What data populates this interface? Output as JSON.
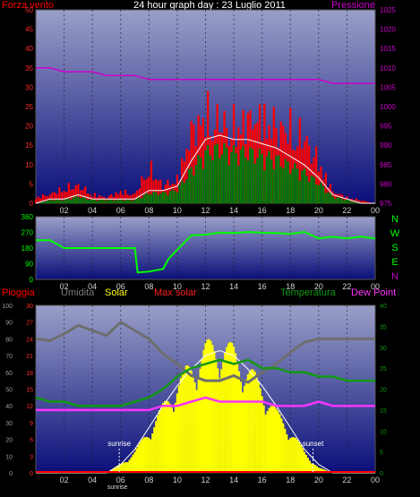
{
  "title": "24 hour graph day : 23 Luglio 2011",
  "colors": {
    "background": "#000000",
    "panel_top": "#9a9fc8",
    "panel_bottom": "#0a0f7a",
    "wind": "#ff0000",
    "gust": "#ff0000",
    "avg_wind": "#008000",
    "avg_line": "#ffffff",
    "pressure": "#cc00cc",
    "direction": "#00ff00",
    "rain": "#ff0000",
    "humidity": "#6e6e6e",
    "solar": "#ffff00",
    "max_solar": "#ffffff",
    "temperature": "#119911",
    "dew_point": "#ff33ff",
    "marker": "#ffffff"
  },
  "x_ticks": [
    "02",
    "04",
    "06",
    "08",
    "10",
    "12",
    "14",
    "16",
    "18",
    "20",
    "22",
    "00"
  ],
  "chart_data": [
    {
      "type": "line",
      "panel": "wind",
      "left_label": "Forza vento",
      "right_label": "Pressione",
      "left_ticks": [
        "0",
        "5",
        "10",
        "15",
        "20",
        "25",
        "30",
        "35",
        "40",
        "45",
        "50"
      ],
      "right_ticks": [
        "975",
        "980",
        "985",
        "990",
        "995",
        "1000",
        "1005",
        "1010",
        "1015",
        "1020",
        "1025"
      ],
      "ylim_left": [
        0,
        50
      ],
      "ylim_right": [
        975,
        1025
      ],
      "x": [
        0,
        1,
        2,
        3,
        4,
        5,
        6,
        7,
        8,
        9,
        10,
        11,
        12,
        13,
        14,
        15,
        16,
        17,
        18,
        19,
        20,
        21,
        22,
        23,
        24
      ],
      "series": [
        {
          "name": "Forza vento",
          "axis": "left",
          "values": [
            2,
            3,
            5,
            6,
            3,
            2,
            4,
            3,
            12,
            6,
            8,
            24,
            30,
            27,
            26,
            28,
            29,
            26,
            25,
            22,
            14,
            4,
            2,
            1,
            0
          ]
        },
        {
          "name": "",
          "axis": "left",
          "values": [
            0,
            1,
            1,
            2,
            1,
            1,
            1,
            1,
            3,
            3,
            4,
            10,
            15,
            16,
            15,
            15,
            14,
            13,
            11,
            9,
            6,
            2,
            1,
            0,
            0
          ]
        },
        {
          "name": "Pressione",
          "axis": "right",
          "values": [
            1010,
            1010,
            1009,
            1009,
            1009,
            1008,
            1008,
            1008,
            1007,
            1007,
            1007,
            1007,
            1007,
            1007,
            1007,
            1007,
            1007,
            1007,
            1007,
            1007,
            1007,
            1006,
            1006,
            1006,
            1006
          ]
        }
      ]
    },
    {
      "type": "line",
      "panel": "direction",
      "left_ticks": [
        "0",
        "90",
        "180",
        "270",
        "360"
      ],
      "right_ticks": [
        "N",
        "W",
        "S",
        "E",
        "N"
      ],
      "ylim": [
        0,
        360
      ],
      "x": [
        0,
        1,
        2,
        3,
        4,
        5,
        6,
        7,
        7.2,
        8,
        9,
        9.4,
        10,
        11,
        12,
        13,
        14,
        15,
        16,
        17,
        18,
        19,
        20,
        21,
        22,
        23,
        24
      ],
      "values": [
        225,
        225,
        180,
        180,
        180,
        180,
        180,
        180,
        40,
        45,
        60,
        120,
        170,
        250,
        260,
        265,
        270,
        268,
        272,
        262,
        265,
        268,
        240,
        240,
        240,
        240,
        240
      ]
    },
    {
      "type": "line",
      "panel": "weather",
      "legend": [
        "Pioggia",
        "Umidita",
        "Solar",
        "Max solar",
        "Temperatura",
        "Dew Point"
      ],
      "left_outer_ticks": [
        "0",
        "10",
        "20",
        "30",
        "40",
        "50",
        "60",
        "70",
        "80",
        "90",
        "100"
      ],
      "left_inner_ticks": [
        "0",
        "3",
        "6",
        "9",
        "12",
        "15",
        "18",
        "21",
        "24",
        "27",
        "30"
      ],
      "right_ticks": [
        "0",
        "5",
        "10",
        "15",
        "20",
        "25",
        "30",
        "35",
        "40"
      ],
      "markers": [
        "sunrise",
        "sunset",
        "sunrise"
      ],
      "x": [
        0,
        1,
        2,
        3,
        4,
        5,
        6,
        7,
        8,
        9,
        10,
        11,
        12,
        13,
        14,
        15,
        16,
        17,
        18,
        19,
        20,
        21,
        22,
        23,
        24
      ],
      "series": [
        {
          "name": "Umidita",
          "axis": "outer",
          "values": [
            80,
            79,
            83,
            88,
            85,
            82,
            90,
            85,
            80,
            71,
            65,
            58,
            55,
            55,
            58,
            54,
            60,
            65,
            72,
            78,
            80,
            80,
            80,
            80,
            80
          ]
        },
        {
          "name": "Temperatura",
          "axis": "right",
          "values": [
            18,
            17,
            17,
            16,
            16,
            16,
            16,
            17,
            18,
            20,
            23,
            25,
            26,
            27,
            26,
            27,
            25,
            25,
            24,
            24,
            23,
            23,
            22,
            22,
            22
          ]
        },
        {
          "name": "Dew Point",
          "axis": "right",
          "values": [
            15,
            15,
            15,
            15,
            15,
            15,
            15,
            15,
            15,
            16,
            16,
            17,
            18,
            17,
            17,
            17,
            17,
            16,
            16,
            16,
            17,
            16,
            16,
            16,
            16
          ]
        },
        {
          "name": "Solar",
          "axis": "outer",
          "values": [
            0,
            0,
            0,
            0,
            0,
            0,
            5,
            12,
            25,
            38,
            52,
            62,
            72,
            75,
            70,
            60,
            50,
            35,
            25,
            12,
            3,
            0,
            0,
            0,
            0
          ]
        },
        {
          "name": "Max solar",
          "axis": "outer",
          "values": [
            0,
            0,
            0,
            0,
            0,
            0,
            5,
            14,
            27,
            40,
            52,
            62,
            70,
            73,
            70,
            62,
            52,
            40,
            27,
            14,
            5,
            0,
            0,
            0,
            0
          ]
        },
        {
          "name": "Pioggia",
          "axis": "inner",
          "values": [
            0,
            0,
            0,
            0,
            0,
            0,
            0,
            0,
            0,
            0,
            0,
            0,
            0,
            0,
            0,
            0,
            0,
            0,
            0,
            0,
            0,
            0,
            0,
            0,
            0
          ]
        }
      ]
    }
  ]
}
